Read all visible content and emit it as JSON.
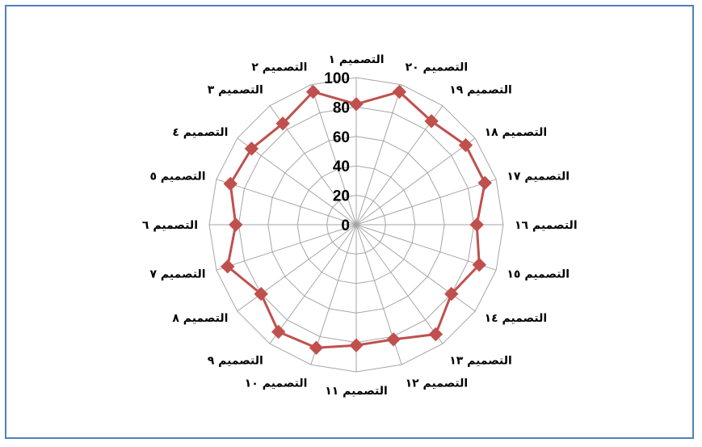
{
  "chart_data": {
    "type": "radar",
    "title": "",
    "categories": [
      "التصميم ١",
      "التصميم ٢٠",
      "التصميم ١٩",
      "التصميم ١٨",
      "التصميم ١٧",
      "التصميم ١٦",
      "التصميم ١٥",
      "التصميم ١٤",
      "التصميم ١٣",
      "التصميم ١٢",
      "التصميم ١١",
      "التصميم ١٠",
      "التصميم ٩",
      "التصميم ٨",
      "التصميم ٧",
      "التصميم ٦",
      "التصميم ٥",
      "التصميم ٤",
      "التصميم ٣",
      "التصميم ٢"
    ],
    "values": [
      82,
      95,
      87,
      92,
      92,
      82,
      88,
      80,
      92,
      82,
      82,
      88,
      90,
      80,
      92,
      82,
      90,
      88,
      85,
      95
    ],
    "rlim": [
      0,
      100
    ],
    "rticks": [
      "0",
      "20",
      "40",
      "60",
      "80",
      "100"
    ],
    "grid": true,
    "series_color": "#c0504d",
    "grid_color": "#a6a6a6",
    "border_color": "#4f81bd"
  }
}
